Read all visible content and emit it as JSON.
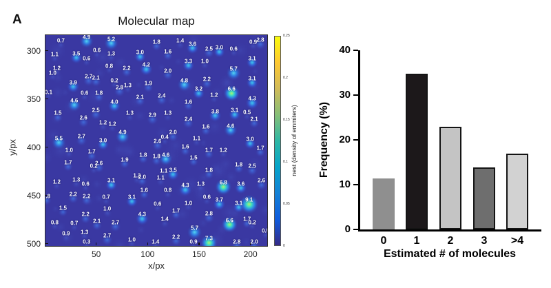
{
  "panel_label": "A",
  "chart_data": [
    {
      "type": "heatmap",
      "title": "Molecular map",
      "xlabel": "x/px",
      "ylabel": "y/px",
      "x_ticks": [
        50,
        100,
        150,
        200
      ],
      "y_ticks": [
        300,
        350,
        400,
        450,
        500
      ],
      "xlim": [
        0,
        217
      ],
      "ylim": [
        283,
        503
      ],
      "background_color": "#3a38a2",
      "blob_colors": {
        "low": "#4453b8",
        "mid": "#3a7de0",
        "high": "#3fc6ee",
        "hot": "#b8f06a"
      },
      "colorbar": {
        "label": "nest (density of emmiters)",
        "ticks_top_to_bottom": [
          "0.25",
          "0.2",
          "0.15",
          "0.1",
          "0.05",
          "0"
        ],
        "colors_bottom_to_top": [
          "#352a87",
          "#0f5cdd",
          "#1481d6",
          "#06a4ca",
          "#2eb7a4",
          "#87bf77",
          "#d1bb59",
          "#fec832",
          "#f9fb0e"
        ]
      },
      "points": [
        [
          15,
          289,
          0.7
        ],
        [
          40,
          285,
          4.9
        ],
        [
          64,
          287,
          5.2
        ],
        [
          108,
          290,
          1.8
        ],
        [
          9,
          303,
          1.1
        ],
        [
          30,
          302,
          3.5
        ],
        [
          50,
          299,
          0.6
        ],
        [
          40,
          307,
          0.6
        ],
        [
          64,
          302,
          1.3
        ],
        [
          92,
          301,
          3.0
        ],
        [
          11,
          317,
          1.2
        ],
        [
          7,
          322,
          1.0
        ],
        [
          62,
          315,
          0.8
        ],
        [
          79,
          317,
          2.2
        ],
        [
          98,
          314,
          4.2
        ],
        [
          42,
          326,
          2.7
        ],
        [
          49,
          327,
          2.1
        ],
        [
          67,
          330,
          0.2
        ],
        [
          27,
          332,
          3.9
        ],
        [
          72,
          337,
          2.8
        ],
        [
          80,
          335,
          1.3
        ],
        [
          100,
          333,
          1.9
        ],
        [
          3,
          342,
          0.1
        ],
        [
          38,
          343,
          0.6
        ],
        [
          52,
          343,
          1.8
        ],
        [
          92,
          347,
          2.1
        ],
        [
          28,
          351,
          4.6
        ],
        [
          67,
          352,
          4.0
        ],
        [
          131,
          289,
          1.4
        ],
        [
          143,
          292,
          3.6
        ],
        [
          159,
          297,
          2.5
        ],
        [
          169,
          296,
          3.0
        ],
        [
          183,
          297,
          0.6
        ],
        [
          202,
          290,
          0.9
        ],
        [
          209,
          288,
          2.8
        ],
        [
          119,
          300,
          1.6
        ],
        [
          201,
          307,
          3.1
        ],
        [
          139,
          310,
          3.3
        ],
        [
          155,
          310,
          1.0
        ],
        [
          119,
          320,
          2.0
        ],
        [
          183,
          318,
          5.7
        ],
        [
          135,
          330,
          4.8
        ],
        [
          157,
          329,
          2.2
        ],
        [
          201,
          328,
          3.1
        ],
        [
          149,
          339,
          3.2
        ],
        [
          181,
          339,
          6.6
        ],
        [
          113,
          346,
          2.4
        ],
        [
          164,
          345,
          1.2
        ],
        [
          139,
          352,
          1.6
        ],
        [
          201,
          349,
          4.3
        ],
        [
          12,
          364,
          1.5
        ],
        [
          49,
          361,
          2.5
        ],
        [
          82,
          364,
          1.3
        ],
        [
          104,
          366,
          2.9
        ],
        [
          37,
          369,
          2.6
        ],
        [
          56,
          374,
          1.2
        ],
        [
          65,
          375,
          1.2
        ],
        [
          75,
          384,
          4.9
        ],
        [
          13,
          390,
          5.5
        ],
        [
          35,
          388,
          2.7
        ],
        [
          56,
          392,
          3.0
        ],
        [
          23,
          402,
          1.0
        ],
        [
          45,
          404,
          1.7
        ],
        [
          22,
          415,
          1.7
        ],
        [
          47,
          419,
          0.2
        ],
        [
          52,
          416,
          2.6
        ],
        [
          95,
          407,
          1.8
        ],
        [
          108,
          409,
          1.8
        ],
        [
          117,
          407,
          4.6
        ],
        [
          77,
          412,
          1.9
        ],
        [
          119,
          364,
          1.3
        ],
        [
          165,
          362,
          3.8
        ],
        [
          184,
          361,
          3.1
        ],
        [
          196,
          363,
          0.5
        ],
        [
          139,
          370,
          2.4
        ],
        [
          203,
          370,
          2.1
        ],
        [
          156,
          378,
          1.6
        ],
        [
          180,
          377,
          4.6
        ],
        [
          124,
          384,
          2.0
        ],
        [
          116,
          389,
          0.4
        ],
        [
          109,
          393,
          2.6
        ],
        [
          147,
          390,
          1.1
        ],
        [
          199,
          391,
          3.0
        ],
        [
          136,
          399,
          1.6
        ],
        [
          159,
          402,
          1.7
        ],
        [
          173,
          402,
          1.2
        ],
        [
          209,
          400,
          1.7
        ],
        [
          144,
          410,
          1.5
        ],
        [
          188,
          417,
          1.8
        ],
        [
          201,
          419,
          2.5
        ],
        [
          115,
          424,
          1.1
        ],
        [
          124,
          423,
          3.5
        ],
        [
          159,
          423,
          1.8
        ],
        [
          11,
          435,
          1.2
        ],
        [
          30,
          433,
          1.3
        ],
        [
          39,
          437,
          0.6
        ],
        [
          64,
          434,
          3.1
        ],
        [
          89,
          429,
          1.2
        ],
        [
          94,
          430,
          2.0
        ],
        [
          96,
          444,
          1.6
        ],
        [
          1,
          450,
          1.8
        ],
        [
          27,
          448,
          2.2
        ],
        [
          40,
          450,
          2.2
        ],
        [
          59,
          451,
          0.7
        ],
        [
          84,
          451,
          3.1
        ],
        [
          17,
          462,
          1.5
        ],
        [
          60,
          463,
          1.0
        ],
        [
          39,
          469,
          2.2
        ],
        [
          94,
          469,
          4.3
        ],
        [
          9,
          477,
          0.8
        ],
        [
          28,
          478,
          0.7
        ],
        [
          50,
          476,
          2.1
        ],
        [
          68,
          477,
          2.7
        ],
        [
          20,
          489,
          0.9
        ],
        [
          38,
          487,
          1.3
        ],
        [
          60,
          491,
          2.7
        ],
        [
          40,
          497,
          0.3
        ],
        [
          84,
          495,
          1.0
        ],
        [
          107,
          497,
          1.4
        ],
        [
          112,
          431,
          1.1
        ],
        [
          136,
          439,
          4.3
        ],
        [
          151,
          437,
          1.3
        ],
        [
          173,
          436,
          6.8
        ],
        [
          190,
          437,
          3.6
        ],
        [
          210,
          434,
          2.6
        ],
        [
          119,
          444,
          0.8
        ],
        [
          109,
          458,
          0.6
        ],
        [
          139,
          457,
          1.0
        ],
        [
          157,
          451,
          0.6
        ],
        [
          169,
          454,
          3.7
        ],
        [
          188,
          457,
          3.1
        ],
        [
          198,
          454,
          9.1
        ],
        [
          127,
          465,
          1.7
        ],
        [
          159,
          468,
          2.8
        ],
        [
          116,
          474,
          1.4
        ],
        [
          179,
          475,
          6.6
        ],
        [
          196,
          474,
          1.7
        ],
        [
          201,
          477,
          0.2
        ],
        [
          145,
          483,
          5.7
        ],
        [
          214,
          486,
          0.5
        ],
        [
          127,
          492,
          2.2
        ],
        [
          159,
          494,
          7.3
        ],
        [
          144,
          497,
          0.9
        ],
        [
          186,
          497,
          2.8
        ],
        [
          203,
          497,
          2.0
        ]
      ]
    },
    {
      "type": "bar",
      "categories": [
        "0",
        "1",
        "2",
        "3",
        ">4"
      ],
      "values": [
        11.4,
        34.7,
        23.0,
        13.8,
        17.0
      ],
      "bar_colors": [
        "#8f8f8f",
        "#1c181a",
        "#c4c4c4",
        "#6e6e6e",
        "#d2d2d2"
      ],
      "bar_borders": [
        "none",
        "#141414",
        "#141414",
        "#141414",
        "#141414"
      ],
      "title": "",
      "xlabel": "Estimated # of molecules",
      "ylabel": "Frequency (%)",
      "ylim": [
        0,
        40
      ],
      "y_ticks": [
        0,
        10,
        20,
        30,
        40
      ],
      "grid": false,
      "legend": false
    }
  ]
}
